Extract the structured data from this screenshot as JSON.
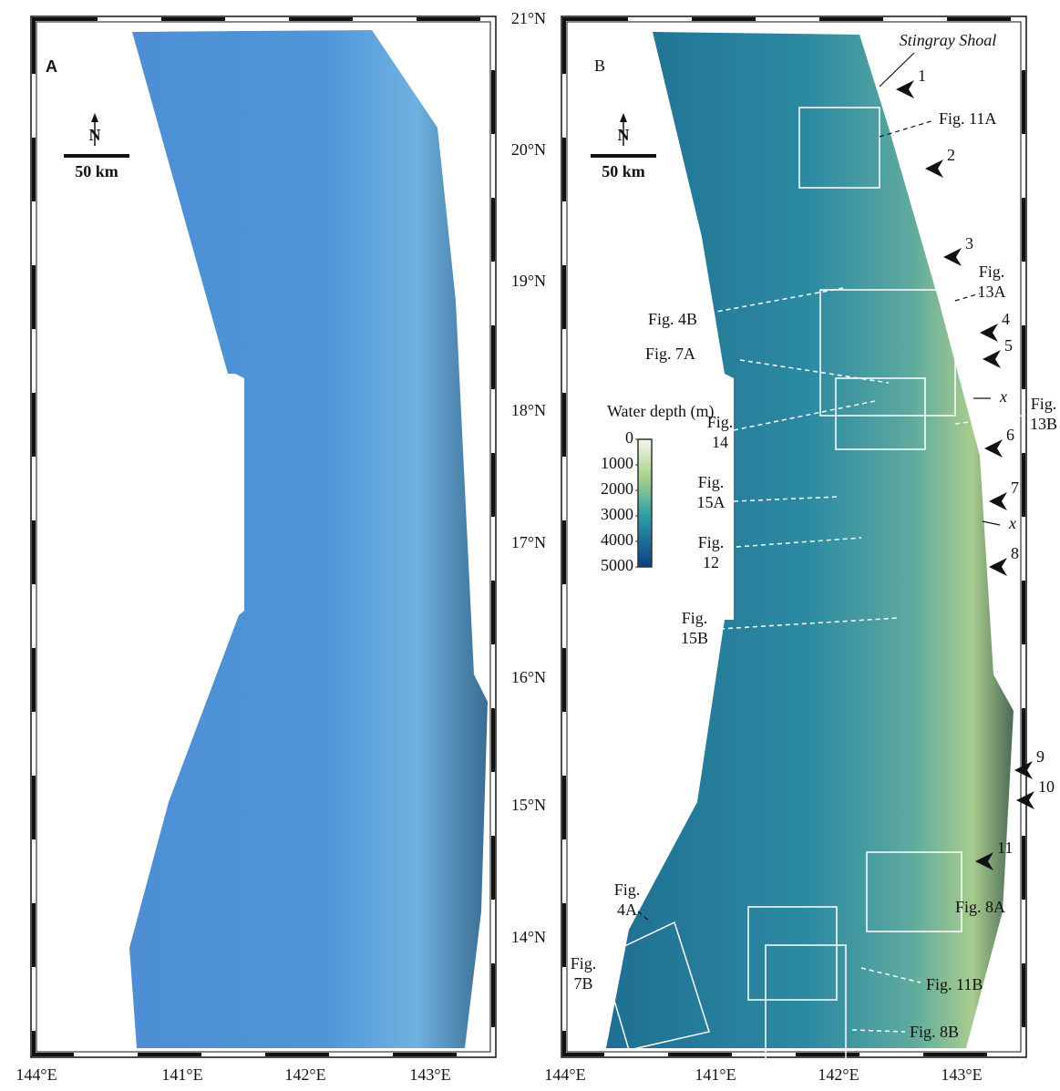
{
  "panel_a": {
    "label": "A",
    "north": "N",
    "scale": "50 km",
    "latitudes": [
      "21°N",
      "20°N",
      "19°N",
      "18°N",
      "17°N",
      "16°N",
      "15°N",
      "14°N"
    ],
    "longitudes": [
      "144°E",
      "141°E",
      "142°E",
      "143°E"
    ]
  },
  "panel_b": {
    "label": "B",
    "north": "N",
    "scale": "50 km",
    "feature": "Stingray Shoal",
    "longitudes": [
      "144°E",
      "141°E",
      "142°E",
      "143°E"
    ],
    "volcanoes": [
      "1",
      "2",
      "3",
      "4",
      "5",
      "6",
      "7",
      "8",
      "9",
      "10",
      "11"
    ],
    "markers": [
      "x",
      "x"
    ],
    "figure_refs": [
      [
        "Fig. 11A"
      ],
      [
        "Fig.",
        "13A"
      ],
      [
        "Fig. 4B"
      ],
      [
        "Fig. 7A"
      ],
      [
        "Fig.",
        "14"
      ],
      [
        "Fig.",
        "13B"
      ],
      [
        "Fig.",
        "15A"
      ],
      [
        "Fig.",
        "12"
      ],
      [
        "Fig.",
        "15B"
      ],
      [
        "Fig.",
        "4A"
      ],
      [
        "Fig.",
        "7B"
      ],
      [
        "Fig. 8A"
      ],
      [
        "Fig. 11B"
      ],
      [
        "Fig. 8B"
      ]
    ],
    "colorbar": {
      "title": "Water depth (m)",
      "lim": [
        0,
        5000
      ],
      "ticks": [
        0,
        1000,
        2000,
        3000,
        4000,
        5000
      ]
    }
  }
}
